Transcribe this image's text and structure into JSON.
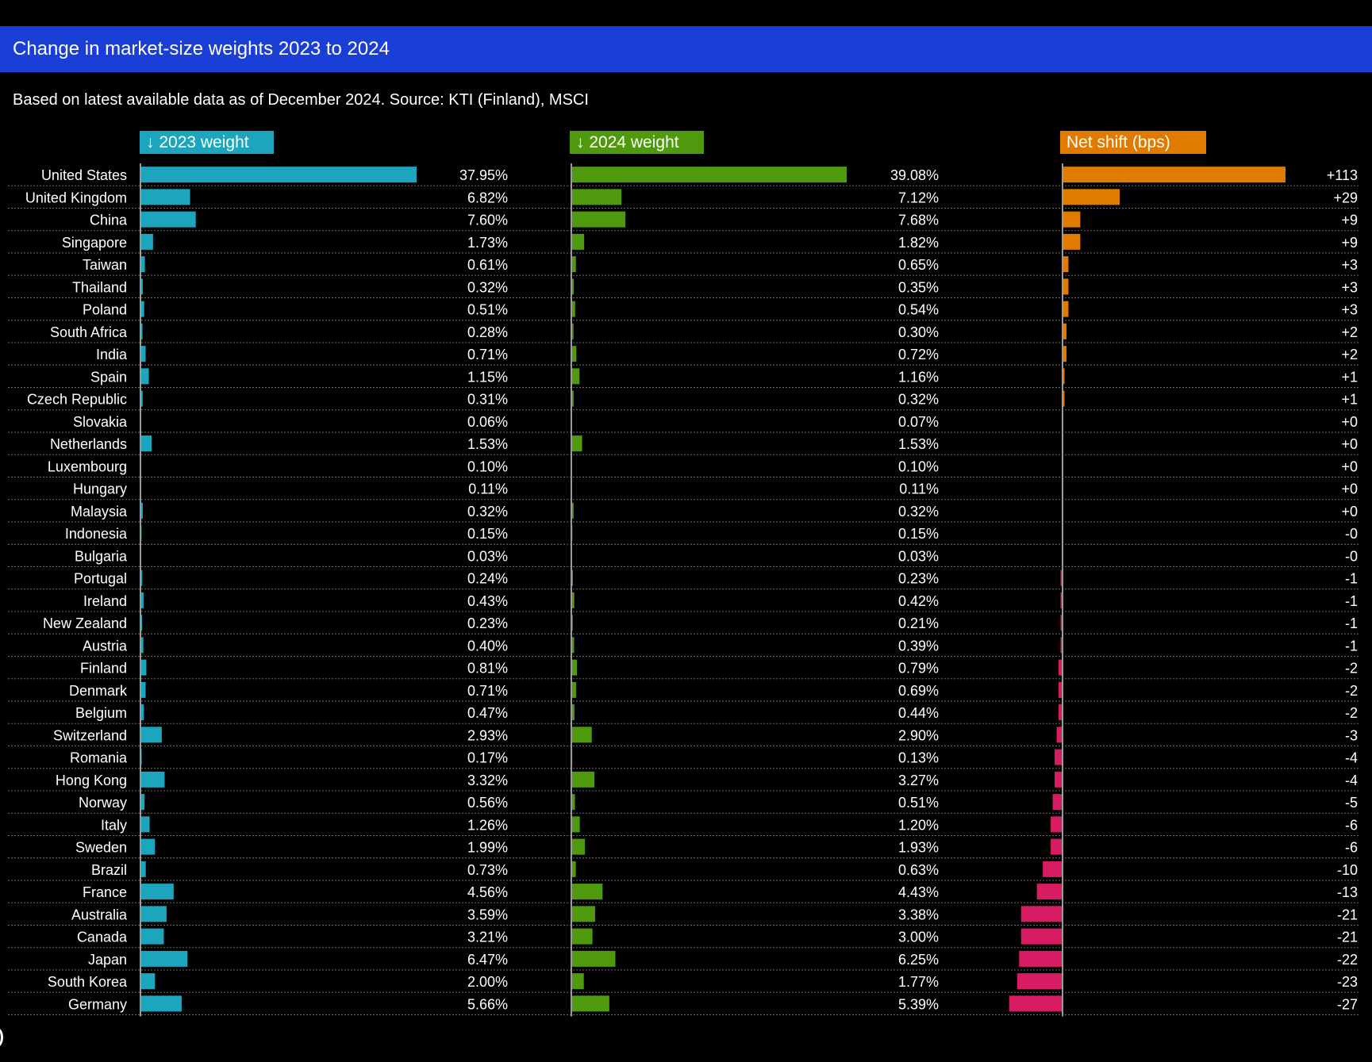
{
  "header": {
    "title": "Change in market-size weights 2023 to 2024",
    "subtitle": "Based on latest available data as of December 2024. Source: KTI (Finland), MSCI"
  },
  "colors": {
    "title_bar": "#1a3fd6",
    "w2023": "#1ba6bd",
    "w2024": "#4e9a0c",
    "shift_positive": "#e07b00",
    "shift_negative": "#d81c63"
  },
  "chart_data": {
    "type": "bar",
    "columns": [
      {
        "key": "w2023",
        "label": "↓ 2023 weight",
        "unit": "%"
      },
      {
        "key": "w2024",
        "label": "↓ 2024 weight",
        "unit": "%"
      },
      {
        "key": "shift",
        "label": "Net shift (bps)",
        "unit": "bps"
      }
    ],
    "categories": [
      "United States",
      "United Kingdom",
      "China",
      "Singapore",
      "Taiwan",
      "Thailand",
      "Poland",
      "South Africa",
      "India",
      "Spain",
      "Czech Republic",
      "Slovakia",
      "Netherlands",
      "Luxembourg",
      "Hungary",
      "Malaysia",
      "Indonesia",
      "Bulgaria",
      "Portugal",
      "Ireland",
      "New Zealand",
      "Austria",
      "Finland",
      "Denmark",
      "Belgium",
      "Switzerland",
      "Romania",
      "Hong Kong",
      "Norway",
      "Italy",
      "Sweden",
      "Brazil",
      "France",
      "Australia",
      "Canada",
      "Japan",
      "South Korea",
      "Germany"
    ],
    "w2023": [
      37.95,
      6.82,
      7.6,
      1.73,
      0.61,
      0.32,
      0.51,
      0.28,
      0.71,
      1.15,
      0.31,
      0.06,
      1.53,
      0.1,
      0.11,
      0.32,
      0.15,
      0.03,
      0.24,
      0.43,
      0.23,
      0.4,
      0.81,
      0.71,
      0.47,
      2.93,
      0.17,
      3.32,
      0.56,
      1.26,
      1.99,
      0.73,
      4.56,
      3.59,
      3.21,
      6.47,
      2.0,
      5.66
    ],
    "w2023_labels": [
      "37.95%",
      "6.82%",
      "7.60%",
      "1.73%",
      "0.61%",
      "0.32%",
      "0.51%",
      "0.28%",
      "0.71%",
      "1.15%",
      "0.31%",
      "0.06%",
      "1.53%",
      "0.10%",
      "0.11%",
      "0.32%",
      "0.15%",
      "0.03%",
      "0.24%",
      "0.43%",
      "0.23%",
      "0.40%",
      "0.81%",
      "0.71%",
      "0.47%",
      "2.93%",
      "0.17%",
      "3.32%",
      "0.56%",
      "1.26%",
      "1.99%",
      "0.73%",
      "4.56%",
      "3.59%",
      "3.21%",
      "6.47%",
      "2.00%",
      "5.66%"
    ],
    "w2024": [
      39.08,
      7.12,
      7.68,
      1.82,
      0.65,
      0.35,
      0.54,
      0.3,
      0.72,
      1.16,
      0.32,
      0.07,
      1.53,
      0.1,
      0.11,
      0.32,
      0.15,
      0.03,
      0.23,
      0.42,
      0.21,
      0.39,
      0.79,
      0.69,
      0.44,
      2.9,
      0.13,
      3.27,
      0.51,
      1.2,
      1.93,
      0.63,
      4.43,
      3.38,
      3.0,
      6.25,
      1.77,
      5.39
    ],
    "w2024_labels": [
      "39.08%",
      "7.12%",
      "7.68%",
      "1.82%",
      "0.65%",
      "0.35%",
      "0.54%",
      "0.30%",
      "0.72%",
      "1.16%",
      "0.32%",
      "0.07%",
      "1.53%",
      "0.10%",
      "0.11%",
      "0.32%",
      "0.15%",
      "0.03%",
      "0.23%",
      "0.42%",
      "0.21%",
      "0.39%",
      "0.79%",
      "0.69%",
      "0.44%",
      "2.90%",
      "0.13%",
      "3.27%",
      "0.51%",
      "1.20%",
      "1.93%",
      "0.63%",
      "4.43%",
      "3.38%",
      "3.00%",
      "6.25%",
      "1.77%",
      "5.39%"
    ],
    "shift": [
      113,
      29,
      9,
      9,
      3,
      3,
      3,
      2,
      2,
      1,
      1,
      0,
      0,
      0,
      0,
      0,
      0,
      0,
      -1,
      -1,
      -1,
      -1,
      -2,
      -2,
      -2,
      -3,
      -4,
      -4,
      -5,
      -6,
      -6,
      -10,
      -13,
      -21,
      -21,
      -22,
      -23,
      -27
    ],
    "shift_labels": [
      "+113",
      "+29",
      "+9",
      "+9",
      "+3",
      "+3",
      "+3",
      "+2",
      "+2",
      "+1",
      "+1",
      "+0",
      "+0",
      "+0",
      "+0",
      "+0",
      "-0",
      "-0",
      "-1",
      "-1",
      "-1",
      "-1",
      "-2",
      "-2",
      "-2",
      "-3",
      "-4",
      "-4",
      "-5",
      "-6",
      "-6",
      "-10",
      "-13",
      "-21",
      "-21",
      "-22",
      "-23",
      "-27"
    ]
  }
}
